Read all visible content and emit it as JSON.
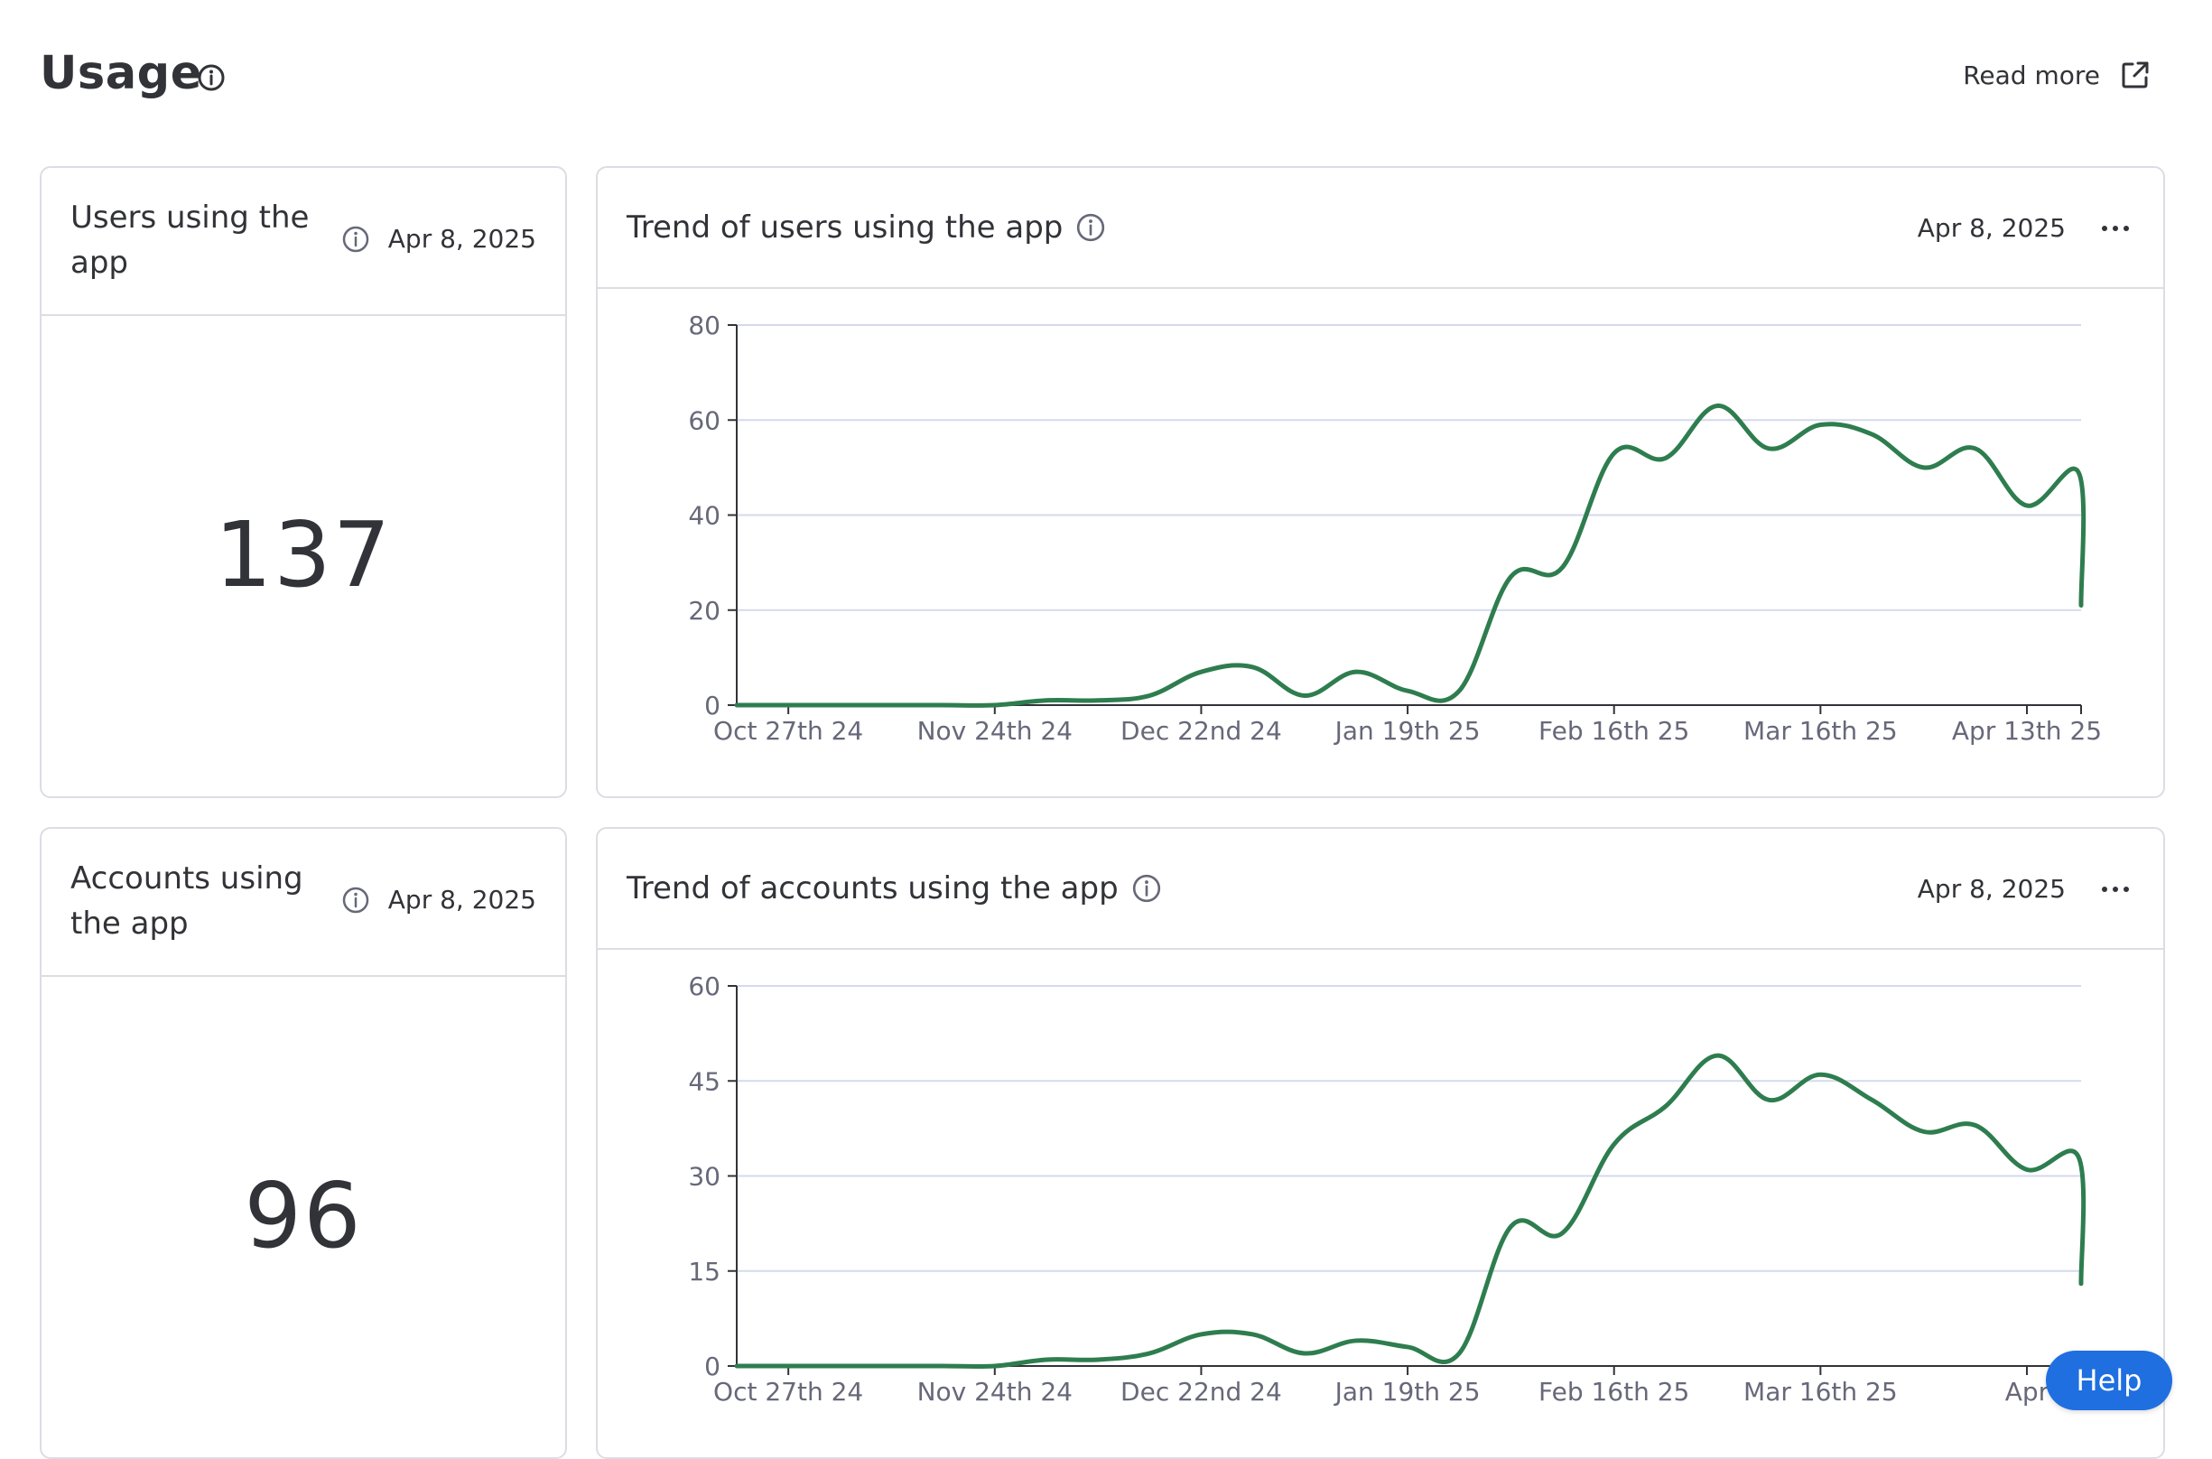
{
  "page": {
    "title": "Usage",
    "read_more_label": "Read more"
  },
  "kpis": [
    {
      "title": "Users using the app",
      "date": "Apr 8, 2025",
      "value": "137"
    },
    {
      "title": "Accounts using the app",
      "date": "Apr 8, 2025",
      "value": "96"
    }
  ],
  "trends": [
    {
      "title": "Trend of users using the app",
      "date": "Apr 8, 2025"
    },
    {
      "title": "Trend of accounts using the app",
      "date": "Apr 8, 2025"
    }
  ],
  "help_label": "Help",
  "colors": {
    "line": "#2e7d4f",
    "accent": "#1f6fe0",
    "grid": "#d6d9ec"
  },
  "icons": {
    "info": "info-circle-icon",
    "external": "external-link-icon",
    "menu": "more-dots-icon"
  },
  "chart_data": [
    {
      "type": "line",
      "x_ticks": [
        "Oct 27th 24",
        "Nov 24th 24",
        "Dec 22nd 24",
        "Jan 19th 25",
        "Feb 16th 25",
        "Mar 16th 25",
        "Apr 13th 25"
      ],
      "y_ticks": [
        0,
        20,
        40,
        60,
        80
      ],
      "ylim": [
        0,
        80
      ],
      "x_domain_weeks": [
        -1,
        25.05
      ],
      "series": [
        {
          "x_weeks": [
            -1,
            0,
            1,
            2,
            3,
            4,
            5,
            6,
            7,
            8,
            9,
            10,
            11,
            12,
            13,
            14,
            15,
            16,
            17,
            18,
            19,
            20,
            21,
            22,
            23,
            24,
            25
          ],
          "values": [
            0,
            0,
            0,
            0,
            0,
            0,
            1,
            1,
            2,
            7,
            8,
            2,
            7,
            3,
            3,
            27,
            29,
            53,
            52,
            63,
            54,
            59,
            57,
            50,
            54,
            42,
            49
          ],
          "end_value": 21
        }
      ],
      "grid": true
    },
    {
      "type": "line",
      "x_ticks": [
        "Oct 27th 24",
        "Nov 24th 24",
        "Dec 22nd 24",
        "Jan 19th 25",
        "Feb 16th 25",
        "Mar 16th 25",
        "Apr"
      ],
      "y_ticks": [
        0,
        15,
        30,
        45,
        60
      ],
      "ylim": [
        0,
        60
      ],
      "x_domain_weeks": [
        -1,
        25.05
      ],
      "series": [
        {
          "x_weeks": [
            -1,
            0,
            1,
            2,
            3,
            4,
            5,
            6,
            7,
            8,
            9,
            10,
            11,
            12,
            13,
            14,
            15,
            16,
            17,
            18,
            19,
            20,
            21,
            22,
            23,
            24,
            25
          ],
          "values": [
            0,
            0,
            0,
            0,
            0,
            0,
            1,
            1,
            2,
            5,
            5,
            2,
            4,
            3,
            2,
            22,
            21,
            35,
            41,
            49,
            42,
            46,
            42,
            37,
            38,
            31,
            33
          ],
          "end_value": 13
        }
      ],
      "grid": true
    }
  ]
}
